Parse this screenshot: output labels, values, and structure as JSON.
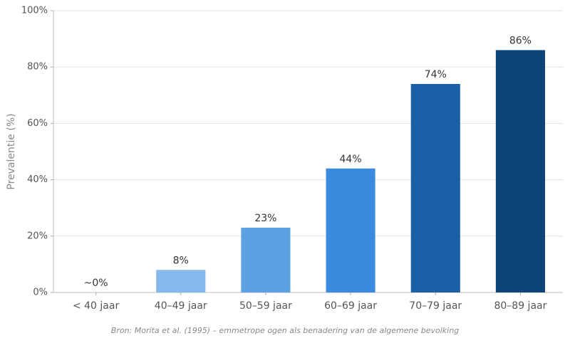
{
  "chart_data": {
    "type": "bar",
    "y_label": "Prevalentie (%)",
    "source": "Bron: Morita et al. (1995) – emmetrope ogen als benadering van de algemene bevolking",
    "categories": [
      "< 40 jaar",
      "40–49 jaar",
      "50–59 jaar",
      "60–69 jaar",
      "70–79 jaar",
      "80–89 jaar"
    ],
    "values": [
      0,
      8,
      23,
      44,
      74,
      86
    ],
    "value_labels": [
      "~0%",
      "8%",
      "23%",
      "44%",
      "74%",
      "86%"
    ],
    "colors": [
      "#b3d4f5",
      "#85b8ec",
      "#5ca2e2",
      "#3a8ae0",
      "#1b5fa6",
      "#0d4479"
    ],
    "ylim": [
      0,
      100
    ],
    "yticks": [
      {
        "value": 0,
        "label": "0%"
      },
      {
        "value": 20,
        "label": "20%"
      },
      {
        "value": 40,
        "label": "40%"
      },
      {
        "value": 60,
        "label": "60%"
      },
      {
        "value": 80,
        "label": "80%"
      },
      {
        "value": 100,
        "label": "100%"
      }
    ],
    "grid": true
  }
}
